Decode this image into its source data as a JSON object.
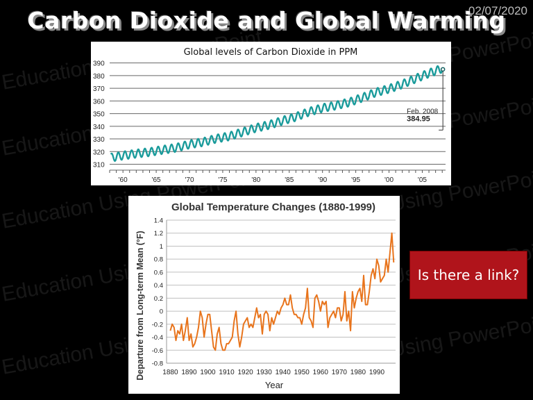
{
  "slide": {
    "date": "02/07/2020",
    "title": "Carbon Dioxide and Global Warming",
    "watermark": "Education Using PowerPoint",
    "callout": "Is there a link?"
  },
  "chart_data": [
    {
      "type": "line",
      "title": "Global levels of Carbon Dioxide in PPM",
      "xlabel": "",
      "ylabel": "",
      "xlim": [
        1958,
        2008.5
      ],
      "ylim": [
        307,
        392
      ],
      "yticks": [
        310,
        320,
        330,
        340,
        350,
        360,
        370,
        380,
        390
      ],
      "xtick_labels": [
        {
          "year": 1960,
          "label": "'60"
        },
        {
          "year": 1965,
          "label": "'65"
        },
        {
          "year": 1970,
          "label": "'70"
        },
        {
          "year": 1975,
          "label": "'75"
        },
        {
          "year": 1980,
          "label": "'80"
        },
        {
          "year": 1985,
          "label": "'85"
        },
        {
          "year": 1990,
          "label": "'90"
        },
        {
          "year": 1995,
          "label": "'95"
        },
        {
          "year": 2000,
          "label": "'00"
        },
        {
          "year": 2005,
          "label": "'05"
        }
      ],
      "grid": "horizontal",
      "line_color": "#1a9b9b",
      "annual_mean_ppm": {
        "years": [
          1958,
          1960,
          1962,
          1964,
          1966,
          1968,
          1970,
          1972,
          1974,
          1976,
          1978,
          1980,
          1982,
          1984,
          1986,
          1988,
          1990,
          1992,
          1994,
          1996,
          1998,
          2000,
          2002,
          2004,
          2006,
          2008
        ],
        "values": [
          315,
          316.9,
          318.4,
          319.6,
          321.4,
          323,
          325.7,
          327.5,
          330.2,
          332.1,
          335.4,
          338.7,
          341.1,
          344.4,
          347.4,
          351.5,
          354.4,
          356.4,
          358.9,
          362.6,
          366.7,
          369.6,
          373.2,
          377.6,
          381.9,
          385.6
        ]
      },
      "seasonal_amplitude_ppm": 3.2,
      "annotation": {
        "label": "Feb. 2008",
        "value": "384.95",
        "year": 2008.1,
        "ppm": 384.95
      }
    },
    {
      "type": "line",
      "title": "Global Temperature Changes (1880-1999)",
      "xlabel": "Year",
      "ylabel": "Departure from Long-term Mean (°F)",
      "xlim": [
        1878,
        2000
      ],
      "ylim": [
        -0.8,
        1.4
      ],
      "yticks": [
        -0.8,
        -0.6,
        -0.4,
        -0.2,
        0,
        0.2,
        0.4,
        0.6,
        0.8,
        1,
        1.2,
        1.4
      ],
      "xticks": [
        1880,
        1890,
        1900,
        1910,
        1920,
        1930,
        1940,
        1950,
        1960,
        1970,
        1980,
        1990
      ],
      "grid": "horizontal",
      "line_color": "#e8741c",
      "x": [
        1880,
        1881,
        1882,
        1883,
        1884,
        1885,
        1886,
        1887,
        1888,
        1889,
        1890,
        1891,
        1892,
        1893,
        1894,
        1895,
        1896,
        1897,
        1898,
        1899,
        1900,
        1901,
        1902,
        1903,
        1904,
        1905,
        1906,
        1907,
        1908,
        1909,
        1910,
        1911,
        1912,
        1913,
        1914,
        1915,
        1916,
        1917,
        1918,
        1919,
        1920,
        1921,
        1922,
        1923,
        1924,
        1925,
        1926,
        1927,
        1928,
        1929,
        1930,
        1931,
        1932,
        1933,
        1934,
        1935,
        1936,
        1937,
        1938,
        1939,
        1940,
        1941,
        1942,
        1943,
        1944,
        1945,
        1946,
        1947,
        1948,
        1949,
        1950,
        1951,
        1952,
        1953,
        1954,
        1955,
        1956,
        1957,
        1958,
        1959,
        1960,
        1961,
        1962,
        1963,
        1964,
        1965,
        1966,
        1967,
        1968,
        1969,
        1970,
        1971,
        1972,
        1973,
        1974,
        1975,
        1976,
        1977,
        1978,
        1979,
        1980,
        1981,
        1982,
        1983,
        1984,
        1985,
        1986,
        1987,
        1988,
        1989,
        1990,
        1991,
        1992,
        1993,
        1994,
        1995,
        1996,
        1997,
        1998,
        1999
      ],
      "y": [
        -0.3,
        -0.2,
        -0.25,
        -0.45,
        -0.3,
        -0.35,
        -0.2,
        -0.45,
        -0.3,
        -0.1,
        -0.45,
        -0.35,
        -0.55,
        -0.5,
        -0.4,
        -0.25,
        0,
        -0.1,
        -0.4,
        -0.2,
        -0.05,
        -0.05,
        -0.3,
        -0.55,
        -0.6,
        -0.35,
        -0.25,
        -0.5,
        -0.6,
        -0.6,
        -0.5,
        -0.5,
        -0.45,
        -0.4,
        -0.15,
        0,
        -0.35,
        -0.55,
        -0.4,
        -0.2,
        -0.15,
        -0.1,
        -0.25,
        -0.2,
        -0.25,
        -0.1,
        0.05,
        -0.1,
        -0.05,
        -0.35,
        -0.05,
        0,
        -0.05,
        -0.3,
        -0.1,
        -0.2,
        -0.1,
        0,
        -0.05,
        0.05,
        0.1,
        0.2,
        0.1,
        0.1,
        0.25,
        0.05,
        -0.05,
        -0.05,
        -0.1,
        -0.1,
        -0.2,
        -0.05,
        0.05,
        0.35,
        -0.1,
        -0.15,
        -0.25,
        0.2,
        0.25,
        0.15,
        0,
        0.15,
        0.1,
        0.15,
        -0.25,
        -0.1,
        -0.05,
        0,
        -0.1,
        0.05,
        0.05,
        -0.15,
        -0.05,
        0.3,
        -0.15,
        0,
        -0.3,
        0.3,
        0.05,
        0.2,
        0.3,
        0.35,
        0.15,
        0.55,
        0.1,
        0.1,
        0.3,
        0.55,
        0.65,
        0.5,
        0.8,
        0.7,
        0.45,
        0.5,
        0.55,
        0.8,
        0.6,
        0.9,
        1.2,
        0.75
      ]
    }
  ]
}
